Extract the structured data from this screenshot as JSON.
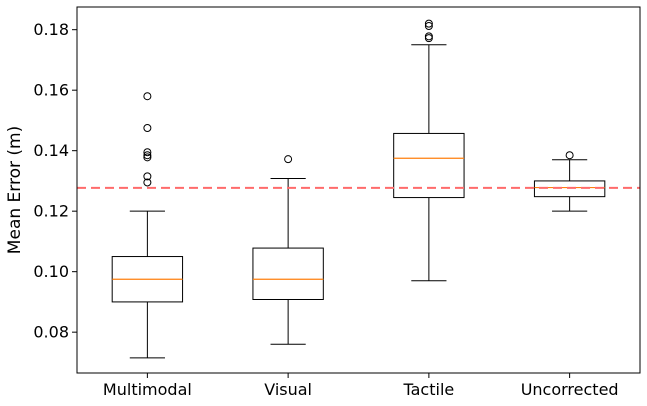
{
  "chart_data": {
    "type": "box",
    "title": "",
    "xlabel": "",
    "ylabel": "Mean Error (m)",
    "ylim": [
      0.0665,
      0.1875
    ],
    "yticks": [
      0.08,
      0.1,
      0.12,
      0.14,
      0.16,
      0.18
    ],
    "ytick_labels": [
      "0.08",
      "0.10",
      "0.12",
      "0.14",
      "0.16",
      "0.18"
    ],
    "categories": [
      "Multimodal",
      "Visual",
      "Tactile",
      "Uncorrected"
    ],
    "boxes": [
      {
        "whisker_low": 0.0715,
        "q1": 0.09,
        "median": 0.0975,
        "q3": 0.105,
        "whisker_high": 0.12,
        "outliers": [
          0.1295,
          0.1315,
          0.1378,
          0.1385,
          0.1395,
          0.1475,
          0.158
        ]
      },
      {
        "whisker_low": 0.076,
        "q1": 0.0908,
        "median": 0.0975,
        "q3": 0.1078,
        "whisker_high": 0.1308,
        "outliers": [
          0.1372
        ]
      },
      {
        "whisker_low": 0.097,
        "q1": 0.1245,
        "median": 0.1375,
        "q3": 0.1457,
        "whisker_high": 0.175,
        "outliers": [
          0.1772,
          0.1778,
          0.1812,
          0.182
        ]
      },
      {
        "whisker_low": 0.12,
        "q1": 0.1248,
        "median": 0.1278,
        "q3": 0.13,
        "whisker_high": 0.137,
        "outliers": [
          0.1385
        ]
      }
    ],
    "reference_line": {
      "y": 0.1277,
      "style": "dashed",
      "color": "#ff6b6b"
    },
    "colors": {
      "box": "#000000",
      "median": "#ff7f0e",
      "reference": "#ff6b6b"
    },
    "grid": false,
    "legend": "none"
  }
}
